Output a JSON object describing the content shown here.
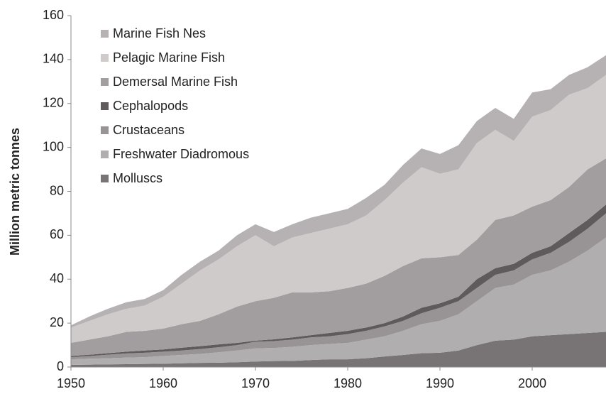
{
  "chart_data": {
    "type": "stacked-area",
    "ylabel": "Million metric tonnes",
    "x": [
      1950,
      1952,
      1954,
      1956,
      1958,
      1960,
      1962,
      1964,
      1966,
      1968,
      1970,
      1972,
      1974,
      1976,
      1978,
      1980,
      1982,
      1984,
      1986,
      1988,
      1990,
      1992,
      1994,
      1996,
      1998,
      2000,
      2002,
      2004,
      2006,
      2008
    ],
    "series": [
      {
        "name": "Molluscs",
        "color": "#787476",
        "values": [
          1,
          1.1,
          1.2,
          1.3,
          1.4,
          1.5,
          1.7,
          1.9,
          2,
          2.2,
          2.5,
          2.7,
          2.8,
          3.2,
          3.5,
          3.5,
          4,
          4.8,
          5.5,
          6.3,
          6.5,
          7.5,
          10,
          12,
          12.5,
          14,
          14.5,
          15,
          15.5,
          16
        ]
      },
      {
        "name": "Freshwater Diadromous",
        "color": "#b1aeaf",
        "values": [
          2.5,
          2.7,
          2.8,
          3,
          3.1,
          3.5,
          3.8,
          4.1,
          4.7,
          5.3,
          6,
          6,
          6.4,
          6.8,
          7,
          7.5,
          8.5,
          9.2,
          11,
          13.2,
          14.5,
          16.5,
          20,
          24,
          25,
          28,
          29.5,
          33,
          37.5,
          43
        ]
      },
      {
        "name": "Crustaceans",
        "color": "#989495",
        "values": [
          1,
          1.2,
          1.6,
          1.9,
          2,
          2,
          2,
          2.2,
          2.3,
          2.5,
          3,
          3.1,
          3.3,
          3.5,
          3.5,
          4,
          4,
          4.5,
          4.5,
          5,
          6,
          6,
          6,
          6,
          6.5,
          7,
          8,
          9,
          10,
          11
        ]
      },
      {
        "name": "Cephalopods",
        "color": "#5f5b5d",
        "values": [
          0.5,
          0.6,
          0.7,
          0.8,
          1,
          1,
          1.3,
          1.3,
          1.3,
          1,
          0.5,
          0.8,
          1,
          1,
          1.5,
          1.5,
          1.5,
          1.5,
          2,
          2.5,
          2,
          2,
          4,
          3,
          3,
          3,
          3,
          4,
          4,
          4
        ]
      },
      {
        "name": "Demersal Marine Fish",
        "color": "#a29e9f",
        "values": [
          6,
          6.9,
          7.7,
          9,
          9,
          9.5,
          10.7,
          11.5,
          13.7,
          16.5,
          18,
          18.9,
          20.5,
          19.5,
          19,
          19.5,
          20,
          21.5,
          23,
          22.5,
          21,
          19,
          18,
          22,
          22,
          21,
          21,
          21,
          23,
          21
        ]
      },
      {
        "name": "Pelagic Marine Fish",
        "color": "#d0cbcb",
        "values": [
          7,
          8.5,
          10,
          10.5,
          11.5,
          14.5,
          18.5,
          23,
          25,
          27.5,
          30,
          23.5,
          25,
          27,
          28.5,
          29,
          31,
          34.5,
          38,
          41.5,
          38,
          39,
          44,
          41,
          34,
          41,
          41,
          42,
          37,
          38
        ]
      },
      {
        "name": "Marine Fish Nes",
        "color": "#b6b2b3",
        "values": [
          1,
          2,
          2.5,
          3,
          3,
          3,
          4,
          4,
          4,
          5,
          5,
          6.5,
          6,
          7,
          7,
          7,
          8,
          7,
          8,
          8.5,
          9,
          11,
          10,
          10,
          10,
          11,
          9.5,
          9,
          9.5,
          9
        ]
      }
    ],
    "xlim": [
      1950,
      2008
    ],
    "xticks": [
      1950,
      1960,
      1970,
      1980,
      1990,
      2000
    ],
    "ylim": [
      0,
      160
    ],
    "yticks": [
      0,
      20,
      40,
      60,
      80,
      100,
      120,
      140,
      160
    ],
    "legend": "upper-left"
  }
}
